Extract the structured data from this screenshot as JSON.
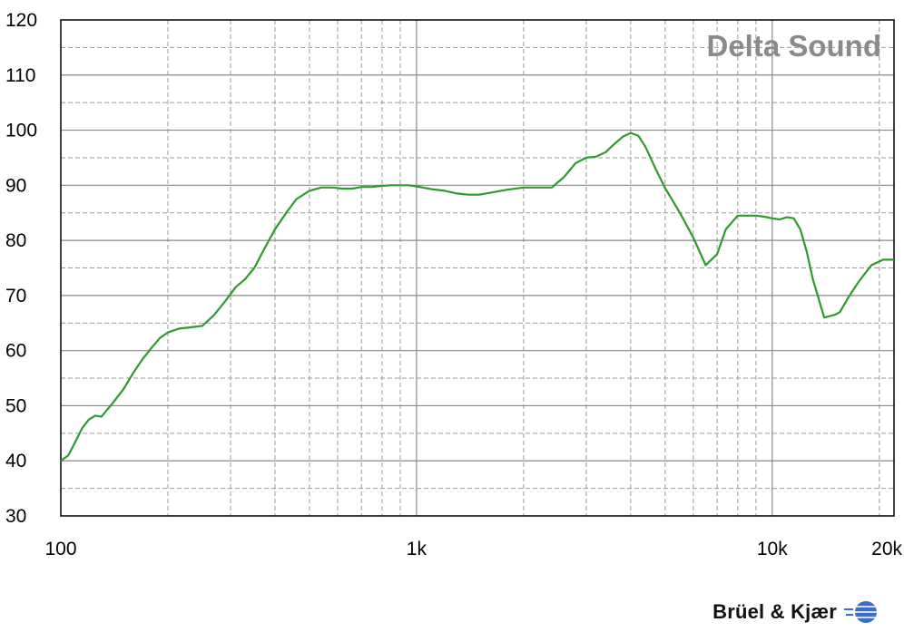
{
  "chart_data": {
    "type": "line",
    "title": "",
    "xlabel": "",
    "ylabel": "",
    "x_scale": "log",
    "xlim": [
      100,
      22000
    ],
    "ylim": [
      30,
      120
    ],
    "grid": true,
    "yticks": [
      30,
      40,
      50,
      60,
      70,
      80,
      90,
      100,
      110,
      120
    ],
    "xticks": [
      {
        "value": 100,
        "label": "100"
      },
      {
        "value": 1000,
        "label": "1k"
      },
      {
        "value": 10000,
        "label": "10k"
      },
      {
        "value": 20000,
        "label": "20k"
      }
    ],
    "watermark": "Delta Sound",
    "series": [
      {
        "color": "#2e9a2e",
        "x": [
          100,
          105,
          110,
          115,
          120,
          125,
          130,
          140,
          150,
          160,
          170,
          180,
          190,
          200,
          215,
          230,
          250,
          270,
          290,
          310,
          330,
          350,
          370,
          400,
          430,
          460,
          500,
          540,
          580,
          620,
          660,
          700,
          750,
          800,
          850,
          900,
          950,
          1000,
          1100,
          1200,
          1300,
          1400,
          1500,
          1600,
          1800,
          2000,
          2200,
          2400,
          2600,
          2800,
          3000,
          3200,
          3400,
          3600,
          3800,
          4000,
          4200,
          4400,
          4700,
          5000,
          5500,
          6000,
          6500,
          7000,
          7400,
          8000,
          8500,
          9000,
          9500,
          10000,
          10500,
          11000,
          11500,
          12000,
          12500,
          13000,
          14000,
          15000,
          15500,
          16500,
          17500,
          19000,
          20500,
          22000
        ],
        "y": [
          40,
          41,
          43.5,
          46,
          47.5,
          48.2,
          48,
          50.5,
          53,
          56,
          58.5,
          60.5,
          62.3,
          63.3,
          64,
          64.2,
          64.5,
          66.5,
          69,
          71.5,
          73,
          75,
          78,
          82,
          85,
          87.5,
          89,
          89.6,
          89.6,
          89.4,
          89.4,
          89.7,
          89.7,
          89.9,
          90,
          90,
          90,
          89.8,
          89.3,
          89,
          88.5,
          88.3,
          88.3,
          88.6,
          89.2,
          89.6,
          89.6,
          89.6,
          91.5,
          94,
          95,
          95.2,
          96,
          97.5,
          98.8,
          99.5,
          99,
          97,
          93,
          89.5,
          85,
          80.5,
          75.5,
          77.5,
          82,
          84.5,
          84.5,
          84.5,
          84.3,
          84,
          83.8,
          84.2,
          84,
          82,
          78,
          73,
          66,
          66.5,
          67,
          70,
          72.5,
          75.5,
          76.5,
          76.5
        ]
      }
    ]
  },
  "branding": {
    "company": "Brüel & Kjær",
    "logo_icon": "globe-icon"
  }
}
